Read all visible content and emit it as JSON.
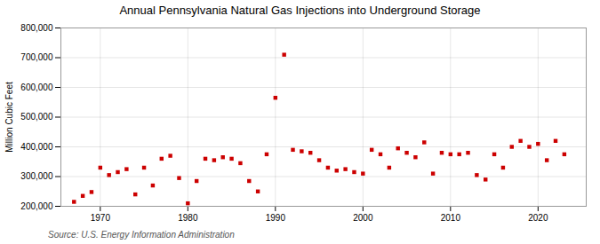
{
  "chart_data": {
    "type": "scatter",
    "title": "Annual Pennsylvania Natural Gas Injections into Underground Storage",
    "ylabel": "Million Cubic Feet",
    "source": "Source: U.S. Energy Information Administration",
    "color": "#cc0000",
    "marker": "square",
    "grid": true,
    "x": [
      1967,
      1968,
      1969,
      1970,
      1971,
      1972,
      1973,
      1974,
      1975,
      1976,
      1977,
      1978,
      1979,
      1980,
      1981,
      1982,
      1983,
      1984,
      1985,
      1986,
      1987,
      1988,
      1989,
      1990,
      1991,
      1992,
      1993,
      1994,
      1995,
      1996,
      1997,
      1998,
      1999,
      2000,
      2001,
      2002,
      2003,
      2004,
      2005,
      2006,
      2007,
      2008,
      2009,
      2010,
      2011,
      2012,
      2013,
      2014,
      2015,
      2016,
      2017,
      2018,
      2019,
      2020,
      2021,
      2022,
      2023
    ],
    "values": [
      215000,
      235000,
      248000,
      330000,
      305000,
      315000,
      325000,
      240000,
      330000,
      270000,
      360000,
      370000,
      295000,
      210000,
      285000,
      360000,
      355000,
      365000,
      360000,
      345000,
      285000,
      250000,
      375000,
      565000,
      710000,
      390000,
      385000,
      380000,
      355000,
      330000,
      320000,
      325000,
      315000,
      310000,
      390000,
      375000,
      330000,
      395000,
      380000,
      365000,
      415000,
      310000,
      380000,
      375000,
      375000,
      380000,
      305000,
      290000,
      375000,
      330000,
      400000,
      420000,
      400000,
      410000,
      355000,
      420000,
      375000
    ],
    "xlim": [
      1965.5,
      2025.5
    ],
    "xticks": [
      1970,
      1980,
      1990,
      2000,
      2010,
      2020
    ],
    "ylim": [
      200000,
      800000
    ],
    "yticks": [
      {
        "value": 200000,
        "label": "200,000"
      },
      {
        "value": 300000,
        "label": "300,000"
      },
      {
        "value": 400000,
        "label": "400,000"
      },
      {
        "value": 500000,
        "label": "500,000"
      },
      {
        "value": 600000,
        "label": "600,000"
      },
      {
        "value": 700000,
        "label": "700,000"
      },
      {
        "value": 800000,
        "label": "800,000"
      }
    ]
  }
}
